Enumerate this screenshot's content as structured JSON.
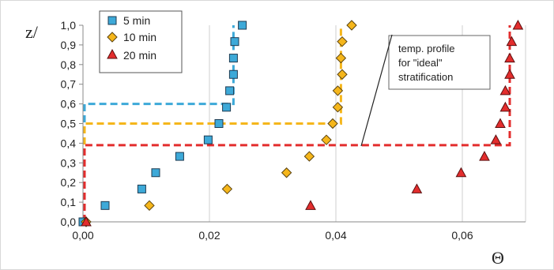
{
  "chart_data": {
    "type": "scatter",
    "ylabel": "z/",
    "xlabel": "Θ",
    "xlim": [
      0,
      0.07
    ],
    "ylim": [
      0,
      1.0
    ],
    "x_ticks": [
      "0,00",
      "0,02",
      "0,04",
      "0,06"
    ],
    "y_ticks": [
      "0,0",
      "0,1",
      "0,2",
      "0,3",
      "0,4",
      "0,5",
      "0,6",
      "0,7",
      "0,8",
      "0,9",
      "1,0"
    ],
    "grid": "vertical",
    "legend_position": "top-left",
    "annotation": {
      "lines": [
        "temp. profile",
        "for \"ideal\"",
        "stratification"
      ]
    },
    "series": [
      {
        "name": "5 min",
        "marker": "square",
        "color": "#3da9d8",
        "points": [
          [
            0.0,
            0.0
          ],
          [
            0.0035,
            0.083
          ],
          [
            0.0093,
            0.167
          ],
          [
            0.0115,
            0.25
          ],
          [
            0.0153,
            0.333
          ],
          [
            0.0198,
            0.417
          ],
          [
            0.0215,
            0.5
          ],
          [
            0.0227,
            0.583
          ],
          [
            0.0232,
            0.667
          ],
          [
            0.0238,
            0.75
          ],
          [
            0.0238,
            0.833
          ],
          [
            0.024,
            0.917
          ],
          [
            0.0252,
            1.0
          ]
        ]
      },
      {
        "name": "10 min",
        "marker": "diamond",
        "color": "#f5b61b",
        "points": [
          [
            0.0005,
            0.0
          ],
          [
            0.0105,
            0.083
          ],
          [
            0.0228,
            0.167
          ],
          [
            0.0322,
            0.25
          ],
          [
            0.0358,
            0.333
          ],
          [
            0.0385,
            0.417
          ],
          [
            0.0395,
            0.5
          ],
          [
            0.0403,
            0.583
          ],
          [
            0.0403,
            0.667
          ],
          [
            0.041,
            0.75
          ],
          [
            0.0408,
            0.833
          ],
          [
            0.041,
            0.917
          ],
          [
            0.0425,
            1.0
          ]
        ]
      },
      {
        "name": "20 min",
        "marker": "triangle",
        "color": "#e32d2d",
        "points": [
          [
            0.0005,
            0.0
          ],
          [
            0.036,
            0.083
          ],
          [
            0.0528,
            0.167
          ],
          [
            0.0598,
            0.25
          ],
          [
            0.0635,
            0.333
          ],
          [
            0.0653,
            0.417
          ],
          [
            0.066,
            0.5
          ],
          [
            0.0668,
            0.583
          ],
          [
            0.0668,
            0.667
          ],
          [
            0.0675,
            0.75
          ],
          [
            0.0675,
            0.833
          ],
          [
            0.0678,
            0.917
          ],
          [
            0.0688,
            1.0
          ]
        ]
      }
    ],
    "ideal_profiles": [
      {
        "name": "5 min ideal",
        "color": "#3da9d8",
        "x_value": 0.0238,
        "z_step": 0.6
      },
      {
        "name": "10 min ideal",
        "color": "#f5b61b",
        "x_value": 0.0408,
        "z_step": 0.5
      },
      {
        "name": "20 min ideal",
        "color": "#e32d2d",
        "x_value": 0.0675,
        "z_step": 0.39
      }
    ]
  }
}
